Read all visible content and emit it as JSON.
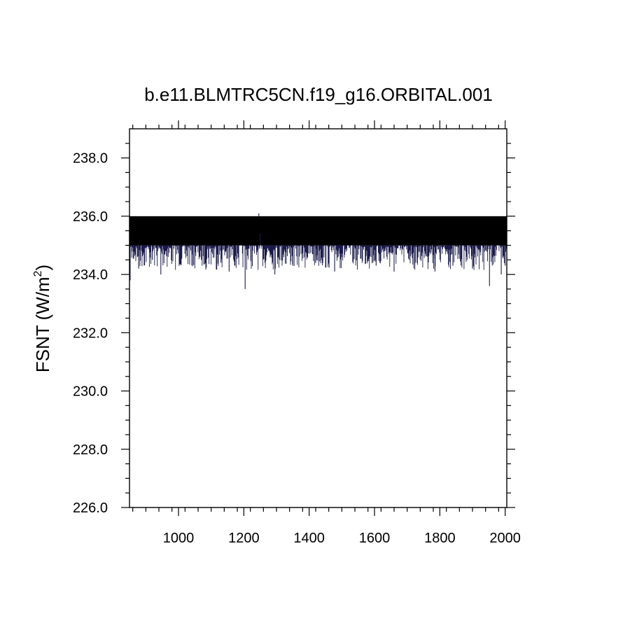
{
  "chart_data": {
    "type": "line",
    "title": "b.e11.BLMTRC5CN.f19_g16.ORBITAL.001",
    "xlabel": "",
    "ylabel": "FSNT (W/m",
    "ylabel_sup": "2",
    "ylabel_close": ")",
    "xlim": [
      850,
      2005
    ],
    "ylim": [
      226.0,
      239.0
    ],
    "x_ticks": [
      1000,
      1200,
      1400,
      1600,
      1800,
      2000
    ],
    "y_ticks": [
      "226.0",
      "228.0",
      "230.0",
      "232.0",
      "234.0",
      "236.0",
      "238.0"
    ],
    "grid": false,
    "line_color": "#1a1a4a",
    "series": [
      {
        "x_start": 850,
        "x_end": 2005,
        "upper_envelope": 236.0,
        "typical_min": 235.0,
        "x": [
          850,
          852,
          878,
          920,
          946,
          1010,
          1070,
          1130,
          1155,
          1204,
          1246,
          1250,
          1295,
          1350,
          1420,
          1478,
          1535,
          1605,
          1660,
          1725,
          1785,
          1840,
          1900,
          1952,
          1988,
          2000
        ],
        "y": [
          236.0,
          233.8,
          234.2,
          234.5,
          234.0,
          234.6,
          234.5,
          234.4,
          234.1,
          233.5,
          236.1,
          235.4,
          234.0,
          234.3,
          234.4,
          234.1,
          234.5,
          234.3,
          234.1,
          234.4,
          234.1,
          234.3,
          234.2,
          233.6,
          234.0,
          234.3
        ]
      }
    ]
  }
}
